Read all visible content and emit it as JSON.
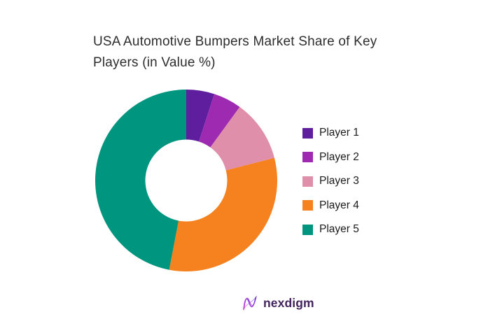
{
  "page": {
    "background_color": "#ffffff"
  },
  "header": {
    "title_line1": "USA Automotive Bumpers Market Share of Key",
    "title_line2": "Players (in Value %)"
  },
  "chart_data": {
    "type": "pie",
    "subtype": "donut",
    "title": "USA Automotive Bumpers Market Share of Key Players (in Value %)",
    "unit": "value %",
    "direction": "clockwise",
    "start_angle_deg": 0,
    "inner_radius_ratio": 0.45,
    "legend_position": "right",
    "series": [
      {
        "name": "Player 1",
        "value": 5,
        "color": "#5E1E9E"
      },
      {
        "name": "Player 2",
        "value": 5,
        "color": "#9E2AB2"
      },
      {
        "name": "Player 3",
        "value": 11,
        "color": "#E08FAB"
      },
      {
        "name": "Player 4",
        "value": 32,
        "color": "#F5811F"
      },
      {
        "name": "Player 5",
        "value": 47,
        "color": "#00957E"
      }
    ]
  },
  "footer": {
    "logo_text": "nexdigm",
    "logo_text_color": "#44245E",
    "logo_mark_gradient_start": "#C437D6",
    "logo_mark_gradient_end": "#5F2AD6"
  }
}
